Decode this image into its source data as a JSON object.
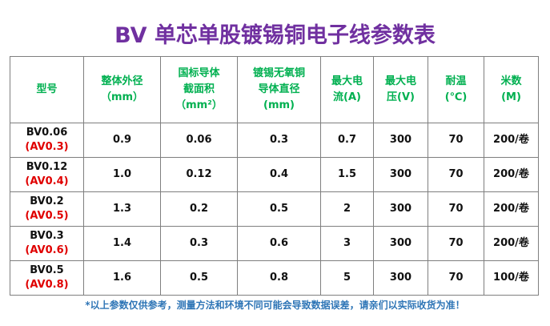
{
  "title": "BV 单芯单股镀锡铜电子线参数表",
  "table": {
    "header": [
      [
        "型号"
      ],
      [
        "整体外径",
        "（mm）"
      ],
      [
        "国标导体",
        "截面积",
        "（mm²）"
      ],
      [
        "镀锡无氧铜",
        "导体直径",
        "(mm)"
      ],
      [
        "最大电",
        "流(A)"
      ],
      [
        "最大电",
        "压(V)"
      ],
      [
        "耐温",
        "(℃)"
      ],
      [
        "米数",
        "(M)"
      ]
    ],
    "rows": [
      [
        {
          "model": "BV0.06",
          "alt": "(AV0.3)"
        },
        "0.9",
        "0.06",
        "0.3",
        "0.7",
        "300",
        "70",
        "200/卷"
      ],
      [
        {
          "model": "BV0.12",
          "alt": "(AV0.4)"
        },
        "1.0",
        "0.12",
        "0.4",
        "1.5",
        "300",
        "70",
        "200/卷"
      ],
      [
        {
          "model": "BV0.2",
          "alt": "(AV0.5)"
        },
        "1.3",
        "0.2",
        "0.5",
        "2",
        "300",
        "70",
        "200/卷"
      ],
      [
        {
          "model": "BV0.3",
          "alt": "(AV0.6)"
        },
        "1.4",
        "0.3",
        "0.6",
        "3",
        "300",
        "70",
        "200/卷"
      ],
      [
        {
          "model": "BV0.5",
          "alt": "(AV0.8)"
        },
        "1.6",
        "0.5",
        "0.8",
        "5",
        "300",
        "70",
        "100/卷"
      ]
    ]
  },
  "footnote": "*以上参数仅供参考，测量方法和环境不同可能会导致数据误差，请亲们以实际收货为准！"
}
